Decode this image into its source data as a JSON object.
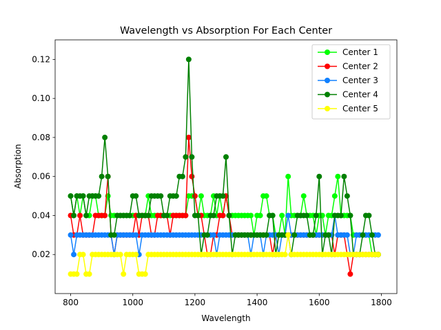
{
  "chart_data": {
    "type": "line",
    "title": "Wavelength vs Absorption For Each Center",
    "xlabel": "Wavelength",
    "ylabel": "Absorption",
    "xlim": [
      750,
      1850
    ],
    "ylim": [
      0.0,
      0.13
    ],
    "xticks": [
      800,
      1000,
      1200,
      1400,
      1600,
      1800
    ],
    "yticks": [
      0.02,
      0.04,
      0.06,
      0.08,
      0.1,
      0.12
    ],
    "ytick_labels": [
      "0.02",
      "0.04",
      "0.06",
      "0.08",
      "0.10",
      "0.12"
    ],
    "x": [
      800,
      810,
      820,
      830,
      840,
      850,
      860,
      870,
      880,
      890,
      900,
      910,
      920,
      930,
      940,
      950,
      960,
      970,
      980,
      990,
      1000,
      1010,
      1020,
      1030,
      1040,
      1050,
      1060,
      1070,
      1080,
      1090,
      1100,
      1110,
      1120,
      1130,
      1140,
      1150,
      1160,
      1170,
      1180,
      1190,
      1200,
      1210,
      1220,
      1230,
      1240,
      1250,
      1260,
      1270,
      1280,
      1290,
      1300,
      1310,
      1320,
      1330,
      1340,
      1350,
      1360,
      1370,
      1380,
      1390,
      1400,
      1410,
      1420,
      1430,
      1440,
      1450,
      1460,
      1470,
      1480,
      1490,
      1500,
      1510,
      1520,
      1530,
      1540,
      1550,
      1560,
      1570,
      1580,
      1590,
      1600,
      1610,
      1620,
      1630,
      1640,
      1650,
      1660,
      1670,
      1680,
      1690,
      1700,
      1710,
      1720,
      1730,
      1740,
      1750,
      1760,
      1770,
      1780,
      1790
    ],
    "legend_position": "upper right",
    "grid": false,
    "series": [
      {
        "name": "Center 1",
        "color": "#00ff00",
        "values": [
          0.05,
          0.04,
          0.05,
          0.04,
          0.05,
          0.04,
          0.04,
          0.05,
          0.05,
          0.04,
          0.04,
          0.04,
          0.05,
          0.04,
          0.04,
          0.04,
          0.04,
          0.04,
          0.04,
          0.04,
          0.04,
          0.04,
          0.04,
          0.04,
          0.04,
          0.05,
          0.04,
          0.04,
          0.04,
          0.04,
          0.04,
          0.04,
          0.04,
          0.04,
          0.04,
          0.04,
          0.04,
          0.04,
          0.05,
          0.05,
          0.05,
          0.04,
          0.05,
          0.04,
          0.04,
          0.04,
          0.05,
          0.04,
          0.05,
          0.04,
          0.05,
          0.04,
          0.04,
          0.04,
          0.04,
          0.04,
          0.04,
          0.04,
          0.04,
          0.03,
          0.04,
          0.04,
          0.05,
          0.05,
          0.04,
          0.04,
          0.03,
          0.03,
          0.04,
          0.03,
          0.06,
          0.04,
          0.04,
          0.04,
          0.04,
          0.05,
          0.04,
          0.04,
          0.04,
          0.03,
          0.04,
          0.04,
          0.03,
          0.04,
          0.04,
          0.05,
          0.06,
          0.04,
          0.04,
          0.04,
          0.04,
          0.03,
          0.03,
          0.03,
          0.03,
          0.03,
          0.03,
          0.02,
          0.02,
          0.02
        ]
      },
      {
        "name": "Center 2",
        "color": "#ff0000",
        "values": [
          0.04,
          0.03,
          0.03,
          0.04,
          0.03,
          0.03,
          0.03,
          0.03,
          0.04,
          0.04,
          0.04,
          0.04,
          0.06,
          0.03,
          0.02,
          0.03,
          0.03,
          0.03,
          0.03,
          0.03,
          0.03,
          0.04,
          0.03,
          0.04,
          0.04,
          0.04,
          0.03,
          0.03,
          0.04,
          0.04,
          0.04,
          0.04,
          0.03,
          0.04,
          0.04,
          0.04,
          0.04,
          0.04,
          0.08,
          0.06,
          0.05,
          0.04,
          0.04,
          0.03,
          0.02,
          0.02,
          0.03,
          0.03,
          0.04,
          0.04,
          0.05,
          0.04,
          0.03,
          0.03,
          0.03,
          0.03,
          0.03,
          0.03,
          0.03,
          0.03,
          0.03,
          0.03,
          0.03,
          0.03,
          0.03,
          0.02,
          0.03,
          0.03,
          0.03,
          0.03,
          0.03,
          0.03,
          0.03,
          0.03,
          0.03,
          0.03,
          0.03,
          0.03,
          0.03,
          0.03,
          0.03,
          0.03,
          0.03,
          0.03,
          0.03,
          0.02,
          0.03,
          0.03,
          0.03,
          0.02,
          0.01,
          0.02,
          0.02,
          0.02,
          0.02,
          0.02,
          0.02,
          0.02,
          0.02,
          0.02
        ]
      },
      {
        "name": "Center 3",
        "color": "#1080ff",
        "values": [
          0.03,
          0.02,
          0.03,
          0.03,
          0.03,
          0.03,
          0.03,
          0.03,
          0.03,
          0.03,
          0.03,
          0.03,
          0.03,
          0.03,
          0.02,
          0.03,
          0.03,
          0.03,
          0.03,
          0.03,
          0.03,
          0.03,
          0.02,
          0.03,
          0.03,
          0.03,
          0.03,
          0.03,
          0.03,
          0.03,
          0.03,
          0.03,
          0.03,
          0.03,
          0.03,
          0.03,
          0.03,
          0.03,
          0.03,
          0.03,
          0.03,
          0.03,
          0.03,
          0.03,
          0.03,
          0.03,
          0.03,
          0.02,
          0.03,
          0.03,
          0.03,
          0.03,
          0.03,
          0.03,
          0.03,
          0.03,
          0.03,
          0.03,
          0.02,
          0.03,
          0.03,
          0.03,
          0.02,
          0.03,
          0.03,
          0.03,
          0.03,
          0.02,
          0.03,
          0.03,
          0.04,
          0.03,
          0.03,
          0.03,
          0.03,
          0.03,
          0.03,
          0.03,
          0.03,
          0.03,
          0.03,
          0.03,
          0.03,
          0.03,
          0.03,
          0.04,
          0.03,
          0.03,
          0.03,
          0.03,
          0.02,
          0.02,
          0.03,
          0.03,
          0.03,
          0.03,
          0.03,
          0.03,
          0.03,
          0.03
        ]
      },
      {
        "name": "Center 4",
        "color": "#008000",
        "values": [
          0.05,
          0.04,
          0.05,
          0.05,
          0.05,
          0.04,
          0.05,
          0.05,
          0.05,
          0.05,
          0.06,
          0.08,
          0.06,
          0.03,
          0.03,
          0.04,
          0.04,
          0.04,
          0.04,
          0.04,
          0.05,
          0.05,
          0.04,
          0.04,
          0.04,
          0.04,
          0.05,
          0.05,
          0.05,
          0.05,
          0.04,
          0.04,
          0.05,
          0.05,
          0.05,
          0.06,
          0.06,
          0.07,
          0.12,
          0.07,
          0.04,
          0.04,
          0.02,
          0.03,
          0.03,
          0.04,
          0.04,
          0.05,
          0.05,
          0.05,
          0.07,
          0.04,
          0.02,
          0.03,
          0.03,
          0.03,
          0.03,
          0.03,
          0.03,
          0.03,
          0.03,
          0.03,
          0.03,
          0.03,
          0.04,
          0.04,
          0.02,
          0.03,
          0.03,
          0.03,
          0.03,
          0.02,
          0.03,
          0.04,
          0.04,
          0.04,
          0.04,
          0.03,
          0.03,
          0.04,
          0.06,
          0.02,
          0.03,
          0.03,
          0.02,
          0.04,
          0.04,
          0.04,
          0.06,
          0.05,
          0.04,
          0.02,
          0.02,
          0.02,
          0.03,
          0.04,
          0.04,
          0.03,
          0.02,
          0.02
        ]
      },
      {
        "name": "Center 5",
        "color": "#ffff00",
        "values": [
          0.01,
          0.01,
          0.01,
          0.02,
          0.02,
          0.01,
          0.01,
          0.02,
          0.02,
          0.02,
          0.02,
          0.02,
          0.02,
          0.02,
          0.02,
          0.02,
          0.02,
          0.01,
          0.02,
          0.02,
          0.02,
          0.02,
          0.01,
          0.01,
          0.01,
          0.02,
          0.02,
          0.02,
          0.02,
          0.02,
          0.02,
          0.02,
          0.02,
          0.02,
          0.02,
          0.02,
          0.02,
          0.02,
          0.02,
          0.02,
          0.02,
          0.02,
          0.02,
          0.02,
          0.02,
          0.02,
          0.02,
          0.02,
          0.02,
          0.02,
          0.02,
          0.02,
          0.02,
          0.02,
          0.02,
          0.02,
          0.02,
          0.02,
          0.02,
          0.02,
          0.02,
          0.02,
          0.02,
          0.02,
          0.02,
          0.02,
          0.02,
          0.02,
          0.02,
          0.02,
          0.03,
          0.02,
          0.02,
          0.02,
          0.02,
          0.02,
          0.02,
          0.02,
          0.02,
          0.02,
          0.02,
          0.02,
          0.02,
          0.02,
          0.02,
          0.02,
          0.02,
          0.02,
          0.02,
          0.02,
          0.02,
          0.02,
          0.02,
          0.02,
          0.02,
          0.02,
          0.02,
          0.02,
          0.02,
          0.02
        ]
      }
    ]
  }
}
